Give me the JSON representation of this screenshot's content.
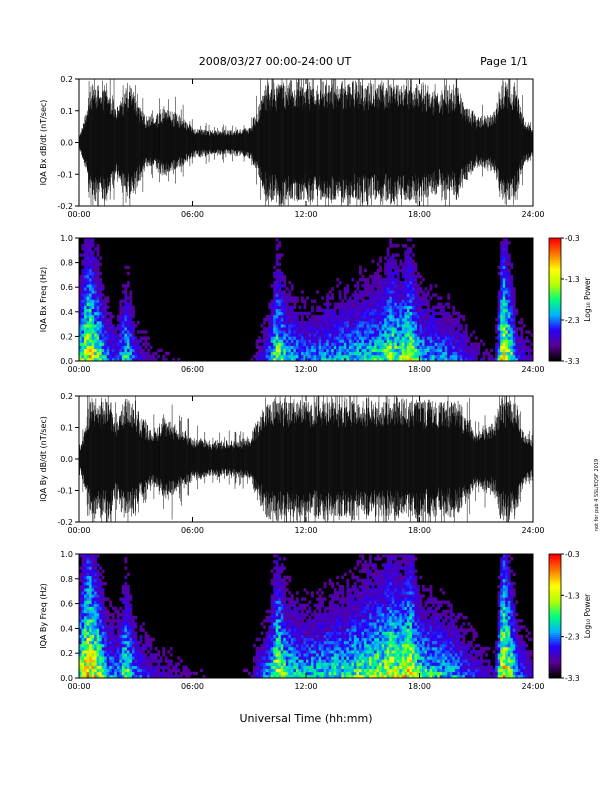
{
  "header": {
    "title": "2008/03/27  00:00-24:00 UT",
    "page": "Page 1/1"
  },
  "side_note": "not for pub 4 SSL/EQSF 2019",
  "x_axis_label": "Universal Time (hh:mm)",
  "colors": {
    "background": "#ffffff",
    "trace": "#000000",
    "spectrogram_background": "#000000",
    "colormap": [
      "#000000",
      "#5a0096",
      "#2800ff",
      "#00b4ff",
      "#00ff7a",
      "#b4ff00",
      "#ffff00",
      "#ff7a00",
      "#ff0000"
    ]
  },
  "chart_data": [
    {
      "type": "line",
      "ylabel": "IQA Bx dB/dt (nT/sec)",
      "xlim": [
        0,
        24
      ],
      "ylim": [
        -0.2,
        0.2
      ],
      "yticks": [
        "-0.2",
        "-0.1",
        "0.0",
        "0.1",
        "0.2"
      ],
      "xticks": [
        "00:00",
        "06:00",
        "12:00",
        "18:00",
        "24:00"
      ],
      "envelope": {
        "hours": [
          0,
          0.3,
          0.6,
          1.0,
          1.5,
          2.0,
          2.5,
          3.0,
          3.5,
          4.0,
          4.5,
          5.0,
          5.5,
          6.0,
          7.0,
          8.0,
          9.0,
          9.5,
          10.0,
          10.5,
          11.0,
          12.0,
          13.0,
          14.0,
          15.0,
          16.0,
          17.0,
          17.5,
          18.0,
          19.0,
          20.0,
          21.0,
          22.0,
          22.3,
          22.6,
          23.0,
          23.5,
          24.0
        ],
        "amplitude": [
          0.02,
          0.08,
          0.2,
          0.2,
          0.2,
          0.12,
          0.2,
          0.15,
          0.09,
          0.08,
          0.12,
          0.1,
          0.08,
          0.05,
          0.04,
          0.04,
          0.05,
          0.12,
          0.2,
          0.2,
          0.2,
          0.2,
          0.2,
          0.2,
          0.2,
          0.2,
          0.2,
          0.2,
          0.2,
          0.16,
          0.18,
          0.08,
          0.1,
          0.2,
          0.2,
          0.2,
          0.08,
          0.05
        ]
      }
    },
    {
      "type": "heatmap",
      "ylabel": "IQA Bx Freq (Hz)",
      "xlim": [
        0,
        24
      ],
      "ylim": [
        0.0,
        1.0
      ],
      "yticks": [
        "0.0",
        "0.2",
        "0.4",
        "0.6",
        "0.8",
        "1.0"
      ],
      "xticks": [
        "00:00",
        "06:00",
        "12:00",
        "18:00",
        "24:00"
      ],
      "colorbar": {
        "label": "Log₁₀ Power",
        "range": [
          -3.3,
          -0.3
        ],
        "ticks": [
          "-0.3",
          "-1.3",
          "-2.3",
          "-3.3"
        ]
      },
      "activity": {
        "hours": [
          0,
          0.5,
          1.0,
          1.5,
          2.0,
          2.5,
          3.0,
          4.0,
          5.0,
          6.0,
          7.0,
          8.0,
          9.0,
          10.0,
          10.5,
          11.0,
          12.0,
          13.0,
          14.0,
          15.0,
          16.0,
          16.5,
          17.0,
          17.5,
          18.0,
          19.0,
          20.0,
          21.0,
          22.0,
          22.4,
          22.8,
          23.2,
          24.0
        ],
        "level": [
          0.6,
          0.9,
          0.7,
          0.4,
          0.3,
          0.6,
          0.3,
          0.15,
          0.15,
          0.1,
          0.08,
          0.08,
          0.1,
          0.35,
          0.75,
          0.5,
          0.4,
          0.45,
          0.5,
          0.55,
          0.6,
          0.75,
          0.65,
          0.8,
          0.5,
          0.45,
          0.35,
          0.2,
          0.15,
          0.95,
          0.7,
          0.3,
          0.2
        ]
      }
    },
    {
      "type": "line",
      "ylabel": "IQA By dB/dt (nT/sec)",
      "xlim": [
        0,
        24
      ],
      "ylim": [
        -0.2,
        0.2
      ],
      "yticks": [
        "-0.2",
        "-0.1",
        "0.0",
        "0.1",
        "0.2"
      ],
      "xticks": [
        "00:00",
        "06:00",
        "12:00",
        "18:00",
        "24:00"
      ],
      "envelope": {
        "hours": [
          0,
          0.3,
          0.6,
          1.0,
          1.5,
          2.0,
          2.5,
          3.0,
          3.5,
          4.0,
          4.5,
          5.0,
          5.5,
          6.0,
          7.0,
          8.0,
          9.0,
          9.5,
          10.0,
          10.5,
          11.0,
          12.0,
          13.0,
          14.0,
          15.0,
          16.0,
          17.0,
          17.5,
          18.0,
          19.0,
          20.0,
          21.0,
          22.0,
          22.3,
          22.6,
          23.0,
          23.5,
          24.0
        ],
        "amplitude": [
          0.03,
          0.1,
          0.2,
          0.2,
          0.2,
          0.14,
          0.2,
          0.17,
          0.11,
          0.1,
          0.14,
          0.12,
          0.1,
          0.07,
          0.06,
          0.06,
          0.07,
          0.14,
          0.2,
          0.2,
          0.2,
          0.2,
          0.2,
          0.2,
          0.2,
          0.2,
          0.2,
          0.2,
          0.2,
          0.18,
          0.19,
          0.1,
          0.12,
          0.2,
          0.2,
          0.2,
          0.1,
          0.06
        ]
      }
    },
    {
      "type": "heatmap",
      "ylabel": "IQA By Freq (Hz)",
      "xlim": [
        0,
        24
      ],
      "ylim": [
        0.0,
        1.0
      ],
      "yticks": [
        "0.0",
        "0.2",
        "0.4",
        "0.6",
        "0.8",
        "1.0"
      ],
      "xticks": [
        "00:00",
        "06:00",
        "12:00",
        "18:00",
        "24:00"
      ],
      "colorbar": {
        "label": "Log₁₀ Power",
        "range": [
          -3.3,
          -0.3
        ],
        "ticks": [
          "-0.3",
          "-1.3",
          "-2.3",
          "-3.3"
        ]
      },
      "activity": {
        "hours": [
          0,
          0.5,
          1.0,
          1.5,
          2.0,
          2.5,
          3.0,
          4.0,
          5.0,
          6.0,
          7.0,
          8.0,
          9.0,
          10.0,
          10.5,
          11.0,
          12.0,
          13.0,
          14.0,
          15.0,
          16.0,
          16.5,
          17.0,
          17.5,
          18.0,
          19.0,
          20.0,
          21.0,
          22.0,
          22.4,
          22.8,
          23.2,
          24.0
        ],
        "level": [
          0.7,
          1.0,
          0.8,
          0.5,
          0.4,
          0.7,
          0.4,
          0.25,
          0.2,
          0.15,
          0.12,
          0.1,
          0.15,
          0.45,
          0.85,
          0.6,
          0.5,
          0.55,
          0.6,
          0.7,
          0.75,
          0.85,
          0.75,
          0.9,
          0.6,
          0.55,
          0.45,
          0.3,
          0.2,
          1.0,
          0.8,
          0.4,
          0.25
        ]
      }
    }
  ]
}
